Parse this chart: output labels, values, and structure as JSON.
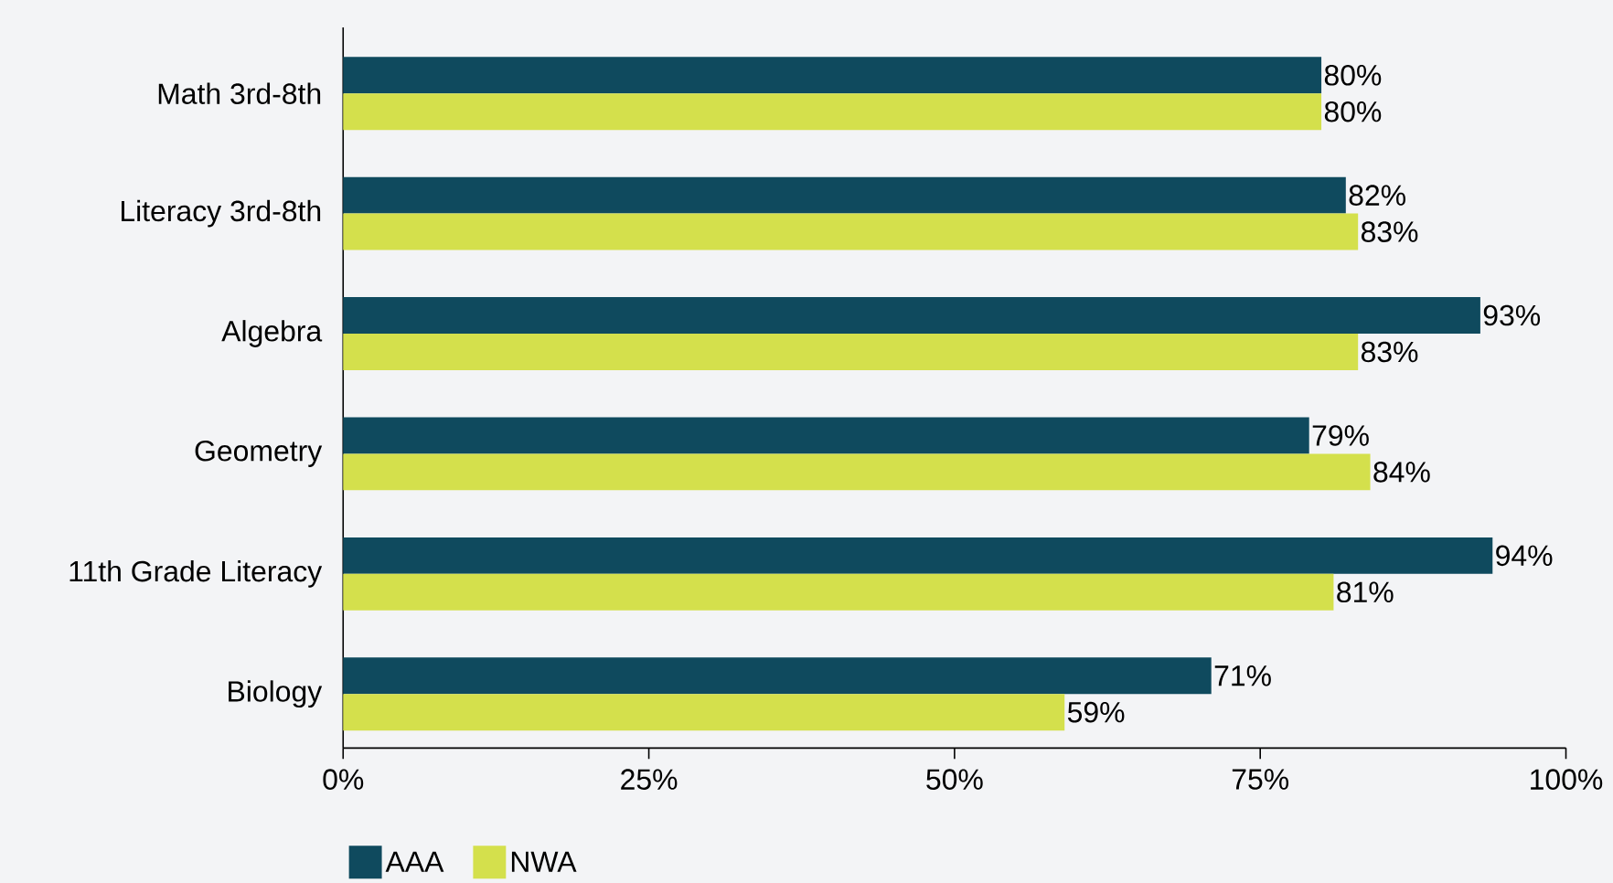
{
  "chart_data": {
    "type": "bar",
    "orientation": "horizontal",
    "categories": [
      "Math 3rd-8th",
      "Literacy 3rd-8th",
      "Algebra",
      "Geometry",
      "11th Grade Literacy",
      "Biology"
    ],
    "series": [
      {
        "name": "AAA",
        "color": "#0f4a5e",
        "values": [
          80,
          82,
          93,
          79,
          94,
          71
        ],
        "value_labels": [
          "80%",
          "82%",
          "93%",
          "79%",
          "94%",
          "71%"
        ]
      },
      {
        "name": "NWA",
        "color": "#d4e04c",
        "values": [
          80,
          83,
          83,
          84,
          81,
          59
        ],
        "value_labels": [
          "80%",
          "83%",
          "83%",
          "84%",
          "81%",
          "59%"
        ]
      }
    ],
    "xlim": [
      0,
      100
    ],
    "xticks": [
      {
        "value": 0,
        "label": "0%"
      },
      {
        "value": 25,
        "label": "25%"
      },
      {
        "value": 50,
        "label": "50%"
      },
      {
        "value": 75,
        "label": "75%"
      },
      {
        "value": 100,
        "label": "100%"
      }
    ],
    "legend": "bottom"
  }
}
